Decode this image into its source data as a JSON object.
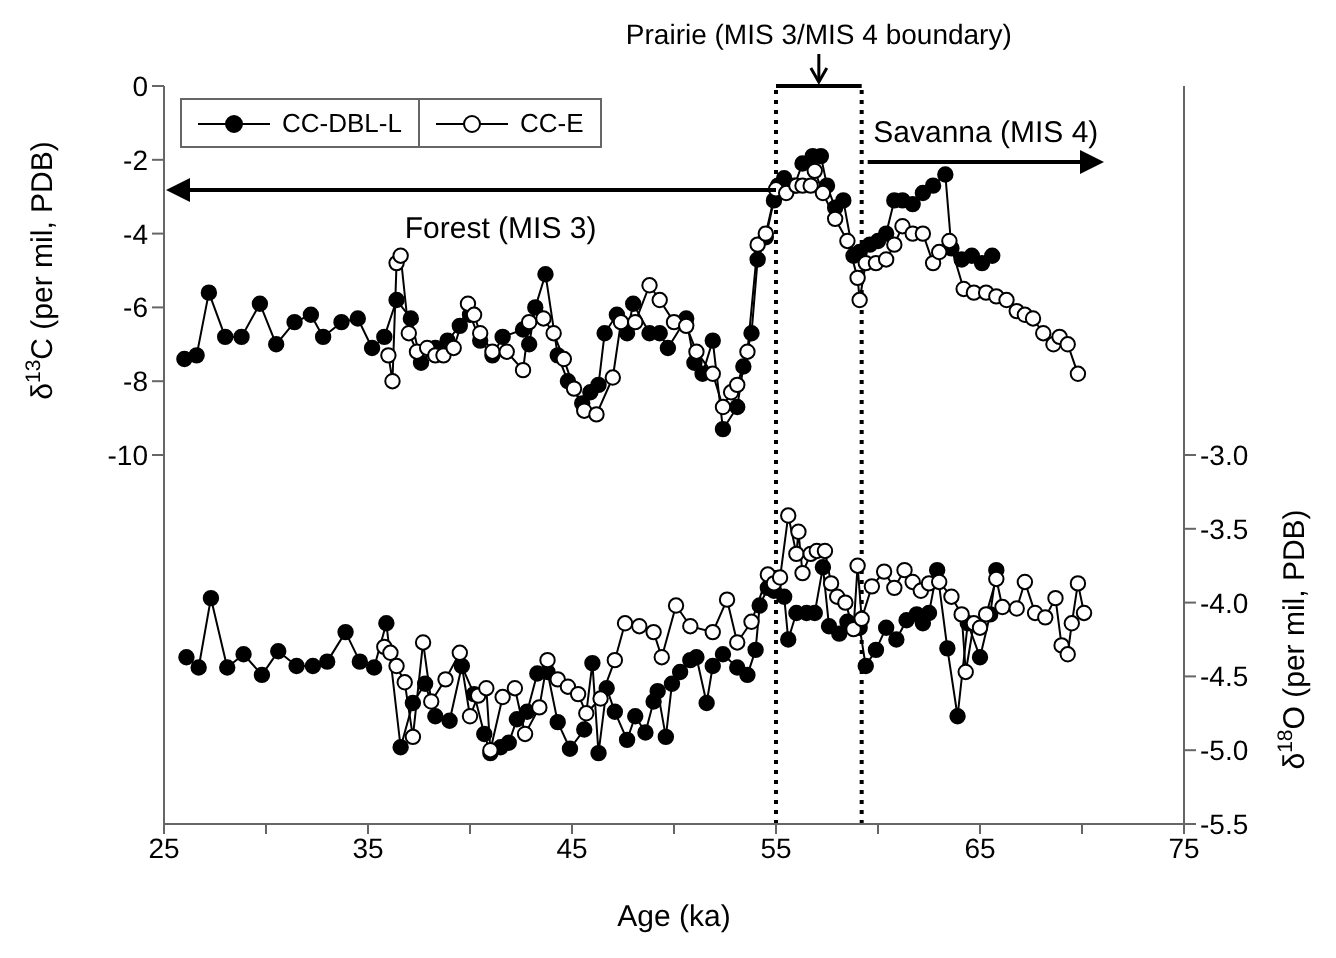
{
  "chart_data": {
    "type": "line",
    "title": "Prairie (MIS 3/MIS 4 boundary)",
    "xlabel": "Age (ka)",
    "ylabel": "δ$^{13}$C (per mil, PDB)",
    "y2label": "δ$^{18}$O (per mil, PDB)",
    "annotations": [
      "Forest (MIS 3)",
      "Savanna (MIS 4)"
    ],
    "xlim": [
      25,
      75
    ],
    "xticks": [
      25,
      {
        "value": 30,
        "label": null
      },
      35,
      {
        "value": 40,
        "label": null
      },
      45,
      {
        "value": 50,
        "label": null
      },
      55,
      {
        "value": 60,
        "label": null
      },
      65,
      {
        "value": 70,
        "label": null
      },
      75
    ],
    "ylim": [
      -20,
      0
    ],
    "yticks": [
      0,
      -2,
      -4,
      -6,
      -8,
      -10
    ],
    "y2lim": [
      -5.5,
      -0.5
    ],
    "y2ticks": [
      {
        "value": -3,
        "label": "-3.0"
      },
      {
        "value": -3.5,
        "label": "-3.5"
      },
      {
        "value": -4,
        "label": "-4.0"
      },
      {
        "value": -4.5,
        "label": "-4.5"
      },
      {
        "value": -5,
        "label": "-5.0"
      },
      {
        "value": -5.5,
        "label": "-5.5"
      }
    ],
    "ref_lines": [
      {
        "axis": "x",
        "value": 55,
        "color": "#000000",
        "line_style": "dotted"
      },
      {
        "axis": "x",
        "value": 59.2,
        "color": "#000000",
        "line_style": "dotted"
      }
    ],
    "legend": "top left",
    "marker": "circle",
    "line_style": "solid",
    "series": [
      {
        "name": "CC-DBL-L",
        "color": "#000000",
        "x": [
          26.0,
          26.6,
          27.2,
          28.0,
          28.8,
          29.7,
          30.5,
          31.4,
          32.2,
          32.8,
          33.7,
          34.5,
          35.2,
          35.8,
          36.4,
          37.1,
          37.6,
          38.3,
          38.9,
          39.5,
          40.0,
          40.5,
          41.1,
          41.6,
          42.6,
          42.9,
          43.2,
          43.7,
          44.3,
          44.8,
          45.5,
          45.9,
          46.3,
          46.6,
          47.2,
          47.7,
          48.0,
          48.8,
          49.3,
          49.7,
          50.6,
          51.0,
          51.4,
          51.9,
          52.4,
          53.1,
          53.4,
          53.8,
          54.1,
          54.5,
          54.9,
          55.1,
          55.4,
          55.9,
          56.3,
          56.8,
          57.2,
          57.5,
          57.9,
          58.3,
          58.8,
          59.1,
          59.6,
          60.0,
          60.4,
          60.8,
          61.2,
          61.7,
          62.2,
          62.7,
          63.3,
          63.6,
          64.1,
          64.6,
          65.1,
          65.6
        ],
        "values": [
          -7.4,
          -7.3,
          -5.6,
          -6.8,
          -6.8,
          -5.9,
          -7.0,
          -6.4,
          -6.2,
          -6.8,
          -6.4,
          -6.3,
          -7.1,
          -6.8,
          -5.8,
          -6.3,
          -7.5,
          -7.1,
          -6.9,
          -6.5,
          -6.2,
          -6.9,
          -7.3,
          -6.8,
          -6.6,
          -7.0,
          -6.0,
          -5.1,
          -7.3,
          -8.0,
          -8.6,
          -8.3,
          -8.1,
          -6.7,
          -6.2,
          -6.7,
          -5.9,
          -6.7,
          -6.7,
          -7.1,
          -6.3,
          -7.5,
          -7.8,
          -6.9,
          -9.3,
          -8.7,
          -7.6,
          -6.7,
          -4.7,
          -4.1,
          -3.1,
          -2.7,
          -2.5,
          -2.7,
          -2.1,
          -1.9,
          -1.9,
          -2.7,
          -3.3,
          -3.1,
          -4.6,
          -4.5,
          -4.3,
          -4.2,
          -4.0,
          -3.1,
          -3.1,
          -3.2,
          -2.9,
          -2.7,
          -2.4,
          -4.4,
          -4.7,
          -4.6,
          -4.8,
          -4.6
        ]
      },
      {
        "name": "CC-E",
        "color": "#000000",
        "x": [
          36.0,
          36.2,
          36.4,
          36.6,
          37.0,
          37.4,
          37.9,
          38.3,
          38.7,
          39.2,
          39.9,
          40.2,
          40.5,
          41.1,
          41.8,
          42.6,
          42.9,
          43.6,
          44.1,
          44.6,
          45.1,
          45.6,
          46.2,
          47.0,
          47.4,
          48.1,
          48.8,
          49.3,
          50.0,
          50.6,
          51.1,
          51.9,
          52.4,
          52.8,
          53.1,
          53.6,
          54.1,
          54.5,
          55.0,
          55.5,
          56.0,
          56.3,
          56.7,
          56.9,
          57.3,
          57.9,
          58.5,
          59.0,
          59.1,
          59.4,
          59.9,
          60.4,
          60.8,
          61.2,
          61.7,
          62.2,
          62.7,
          63.0,
          63.5,
          64.2,
          64.7,
          65.3,
          65.8,
          66.3,
          66.8,
          67.2,
          67.6,
          68.1,
          68.6,
          68.9,
          69.3,
          69.8
        ],
        "values": [
          -7.3,
          -8.0,
          -4.8,
          -4.6,
          -6.7,
          -7.2,
          -7.1,
          -7.3,
          -7.3,
          -7.1,
          -5.9,
          -6.2,
          -6.7,
          -7.2,
          -7.2,
          -7.7,
          -6.4,
          -6.3,
          -6.7,
          -7.4,
          -8.2,
          -8.8,
          -8.9,
          -7.9,
          -6.4,
          -6.4,
          -5.4,
          -5.8,
          -6.4,
          -6.5,
          -7.2,
          -7.8,
          -8.7,
          -8.3,
          -8.1,
          -7.2,
          -4.3,
          -4.0,
          -2.8,
          -2.9,
          -2.7,
          -2.7,
          -2.7,
          -2.3,
          -2.9,
          -3.6,
          -4.2,
          -5.2,
          -5.8,
          -4.8,
          -4.8,
          -4.7,
          -4.3,
          -3.8,
          -4.0,
          -4.0,
          -4.8,
          -4.5,
          -4.2,
          -5.5,
          -5.6,
          -5.6,
          -5.7,
          -5.8,
          -6.1,
          -6.2,
          -6.3,
          -6.7,
          -7.0,
          -6.8,
          -7.0,
          -7.8
        ]
      },
      {
        "axis": "y2",
        "color": "#000000",
        "x": [
          26.1,
          26.7,
          27.3,
          28.1,
          28.9,
          29.8,
          30.6,
          31.5,
          32.3,
          33.0,
          33.9,
          34.6,
          35.3,
          35.9,
          36.6,
          37.2,
          37.8,
          38.3,
          39.0,
          39.6,
          40.2,
          40.7,
          41.0,
          41.5,
          41.9,
          42.3,
          42.8,
          43.3,
          43.8,
          44.3,
          44.9,
          45.6,
          46.0,
          46.3,
          46.7,
          47.1,
          47.7,
          48.1,
          48.6,
          49.0,
          49.2,
          49.6,
          49.9,
          50.3,
          50.8,
          51.1,
          51.6,
          51.9,
          52.4,
          53.1,
          53.6,
          54.0,
          54.2,
          54.6,
          54.9,
          55.4,
          55.6,
          56.0,
          56.5,
          56.9,
          57.3,
          57.6,
          58.1,
          58.5,
          59.1,
          59.4,
          59.9,
          60.4,
          60.9,
          61.4,
          61.9,
          62.2,
          62.5,
          62.9,
          63.4,
          63.9,
          64.4,
          65.0,
          65.5,
          65.8
        ],
        "values": [
          -4.37,
          -4.44,
          -3.97,
          -4.44,
          -4.35,
          -4.49,
          -4.33,
          -4.43,
          -4.43,
          -4.4,
          -4.2,
          -4.4,
          -4.44,
          -4.14,
          -4.98,
          -4.68,
          -4.55,
          -4.77,
          -4.8,
          -4.43,
          -4.62,
          -4.89,
          -5.02,
          -4.98,
          -4.95,
          -4.79,
          -4.74,
          -4.48,
          -4.47,
          -4.81,
          -4.99,
          -4.86,
          -4.41,
          -5.02,
          -4.58,
          -4.74,
          -4.93,
          -4.77,
          -4.88,
          -4.67,
          -4.6,
          -4.91,
          -4.55,
          -4.47,
          -4.39,
          -4.37,
          -4.68,
          -4.43,
          -4.35,
          -4.44,
          -4.49,
          -4.32,
          -4.02,
          -3.9,
          -3.92,
          -3.96,
          -4.25,
          -4.07,
          -4.07,
          -4.07,
          -3.76,
          -4.16,
          -4.21,
          -4.13,
          -4.17,
          -4.43,
          -4.32,
          -4.17,
          -4.25,
          -4.12,
          -4.08,
          -4.14,
          -4.07,
          -3.78,
          -4.31,
          -4.77,
          -4.14,
          -4.37,
          -4.08,
          -3.78
        ]
      },
      {
        "axis": "y2",
        "color": "#000000",
        "x": [
          35.8,
          36.1,
          36.4,
          36.8,
          37.2,
          37.7,
          38.1,
          38.8,
          39.5,
          40.0,
          40.4,
          40.8,
          41.0,
          41.6,
          42.2,
          42.7,
          43.4,
          43.8,
          44.3,
          44.8,
          45.3,
          45.7,
          46.4,
          47.1,
          47.6,
          48.3,
          49.0,
          49.4,
          50.1,
          50.8,
          51.9,
          52.6,
          53.1,
          53.8,
          54.6,
          54.9,
          55.2,
          55.6,
          56.0,
          56.1,
          56.3,
          56.7,
          57.0,
          57.4,
          57.7,
          58.0,
          58.4,
          58.8,
          59.0,
          59.2,
          59.7,
          60.3,
          60.8,
          61.3,
          61.7,
          62.1,
          62.5,
          63.0,
          63.6,
          64.1,
          64.3,
          64.7,
          65.0,
          65.3,
          65.8,
          66.1,
          66.8,
          67.2,
          67.7,
          68.2,
          68.7,
          69.0,
          69.3,
          69.5,
          69.8,
          70.1
        ],
        "values": [
          -4.3,
          -4.34,
          -4.43,
          -4.54,
          -4.91,
          -4.27,
          -4.67,
          -4.52,
          -4.34,
          -4.77,
          -4.63,
          -4.58,
          -5.0,
          -4.64,
          -4.58,
          -4.89,
          -4.71,
          -4.39,
          -4.52,
          -4.57,
          -4.62,
          -4.75,
          -4.65,
          -4.39,
          -4.14,
          -4.16,
          -4.2,
          -4.37,
          -4.02,
          -4.16,
          -4.2,
          -3.98,
          -4.27,
          -4.13,
          -3.81,
          -3.87,
          -3.83,
          -3.41,
          -3.67,
          -3.52,
          -3.8,
          -3.67,
          -3.65,
          -3.65,
          -3.87,
          -3.96,
          -4.0,
          -4.18,
          -3.75,
          -4.11,
          -3.89,
          -3.79,
          -3.9,
          -3.78,
          -3.86,
          -3.92,
          -3.87,
          -3.86,
          -3.96,
          -4.08,
          -4.47,
          -4.14,
          -4.17,
          -4.08,
          -3.84,
          -4.03,
          -4.04,
          -3.86,
          -4.07,
          -4.1,
          -3.97,
          -4.29,
          -4.35,
          -4.14,
          -3.87,
          -4.07
        ]
      }
    ]
  }
}
